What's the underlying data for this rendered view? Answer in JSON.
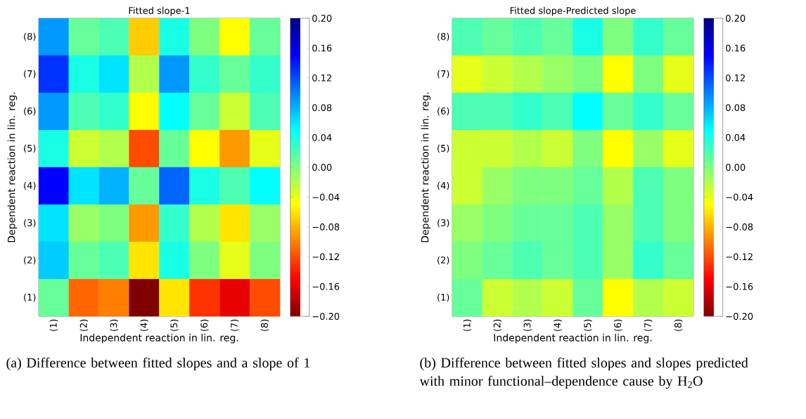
{
  "chart_data": [
    {
      "type": "heatmap",
      "title": "Fitted slope-1",
      "xlabel": "Independent reaction in lin. reg.",
      "ylabel": "Dependent reaction in lin. reg.",
      "categories": [
        "(1)",
        "(2)",
        "(3)",
        "(4)",
        "(5)",
        "(6)",
        "(7)",
        "(8)"
      ],
      "y_categories": [
        "(8)",
        "(7)",
        "(6)",
        "(5)",
        "(4)",
        "(3)",
        "(2)",
        "(1)"
      ],
      "cells": [
        [
          0.09,
          0.01,
          0.02,
          -0.07,
          0.04,
          0.0,
          -0.05,
          0.01
        ],
        [
          0.13,
          0.04,
          0.06,
          -0.02,
          0.09,
          0.03,
          0.01,
          0.03
        ],
        [
          0.09,
          0.02,
          0.03,
          -0.05,
          0.05,
          0.01,
          -0.03,
          0.02
        ],
        [
          0.04,
          -0.03,
          -0.02,
          -0.12,
          0.01,
          -0.05,
          -0.09,
          -0.04
        ],
        [
          0.15,
          0.06,
          0.08,
          0.01,
          0.11,
          0.04,
          0.02,
          0.05
        ],
        [
          0.06,
          -0.01,
          0.0,
          -0.09,
          0.03,
          -0.02,
          -0.06,
          -0.01
        ],
        [
          0.07,
          0.01,
          0.02,
          -0.06,
          0.04,
          0.0,
          -0.04,
          0.0
        ],
        [
          0.01,
          -0.11,
          -0.1,
          -0.2,
          -0.06,
          -0.13,
          -0.16,
          -0.12
        ]
      ],
      "clim": [
        -0.2,
        0.2
      ],
      "cticks": [
        {
          "value": -0.2,
          "label": "−0.20"
        },
        {
          "value": -0.16,
          "label": "−0.16"
        },
        {
          "value": -0.12,
          "label": "−0.12"
        },
        {
          "value": -0.08,
          "label": "−0.08"
        },
        {
          "value": -0.04,
          "label": "−0.04"
        },
        {
          "value": 0,
          "label": "0.00"
        },
        {
          "value": 0.04,
          "label": "0.04"
        },
        {
          "value": 0.08,
          "label": "0.08"
        },
        {
          "value": 0.12,
          "label": "0.12"
        },
        {
          "value": 0.16,
          "label": "0.16"
        },
        {
          "value": 0.2,
          "label": "0.20"
        }
      ],
      "annotations": [
        "(a)  Difference between fitted slopes and a slope of 1"
      ]
    },
    {
      "type": "heatmap",
      "title": "Fitted slope-Predicted slope",
      "xlabel": "Independent reaction in lin. reg.",
      "ylabel": "Dependent reaction in lin. reg.",
      "categories": [
        "(1)",
        "(2)",
        "(3)",
        "(4)",
        "(5)",
        "(6)",
        "(7)",
        "(8)"
      ],
      "y_categories": [
        "(8)",
        "(7)",
        "(6)",
        "(5)",
        "(4)",
        "(3)",
        "(2)",
        "(1)"
      ],
      "cells": [
        [
          0.02,
          0.01,
          0.02,
          0.01,
          0.04,
          0.0,
          0.03,
          0.01
        ],
        [
          -0.04,
          -0.03,
          -0.02,
          -0.01,
          0.0,
          -0.05,
          0.0,
          -0.04
        ],
        [
          0.02,
          0.02,
          0.03,
          0.02,
          0.05,
          0.01,
          0.03,
          0.01
        ],
        [
          -0.03,
          -0.03,
          -0.02,
          -0.03,
          0.0,
          -0.05,
          -0.01,
          -0.04
        ],
        [
          -0.03,
          -0.01,
          0.0,
          0.0,
          0.01,
          -0.02,
          0.02,
          0.0
        ],
        [
          -0.01,
          0.0,
          0.01,
          0.01,
          0.02,
          -0.01,
          0.02,
          0.0
        ],
        [
          0.0,
          0.01,
          0.02,
          0.01,
          0.02,
          -0.01,
          0.03,
          0.01
        ],
        [
          0.01,
          -0.03,
          -0.02,
          -0.03,
          0.01,
          -0.05,
          -0.02,
          -0.03
        ]
      ],
      "clim": [
        -0.2,
        0.2
      ],
      "cticks": [
        {
          "value": -0.2,
          "label": "−0.20"
        },
        {
          "value": -0.16,
          "label": "−0.16"
        },
        {
          "value": -0.12,
          "label": "−0.12"
        },
        {
          "value": -0.08,
          "label": "−0.08"
        },
        {
          "value": -0.04,
          "label": "−0.04"
        },
        {
          "value": 0,
          "label": "0.00"
        },
        {
          "value": 0.04,
          "label": "0.04"
        },
        {
          "value": 0.08,
          "label": "0.08"
        },
        {
          "value": 0.12,
          "label": "0.12"
        },
        {
          "value": 0.16,
          "label": "0.16"
        },
        {
          "value": 0.2,
          "label": "0.20"
        }
      ],
      "annotations": [
        "(b)  Difference between fitted slopes and slopes predicted with minor functional–dependence cause by H$_{2}$O"
      ]
    }
  ]
}
